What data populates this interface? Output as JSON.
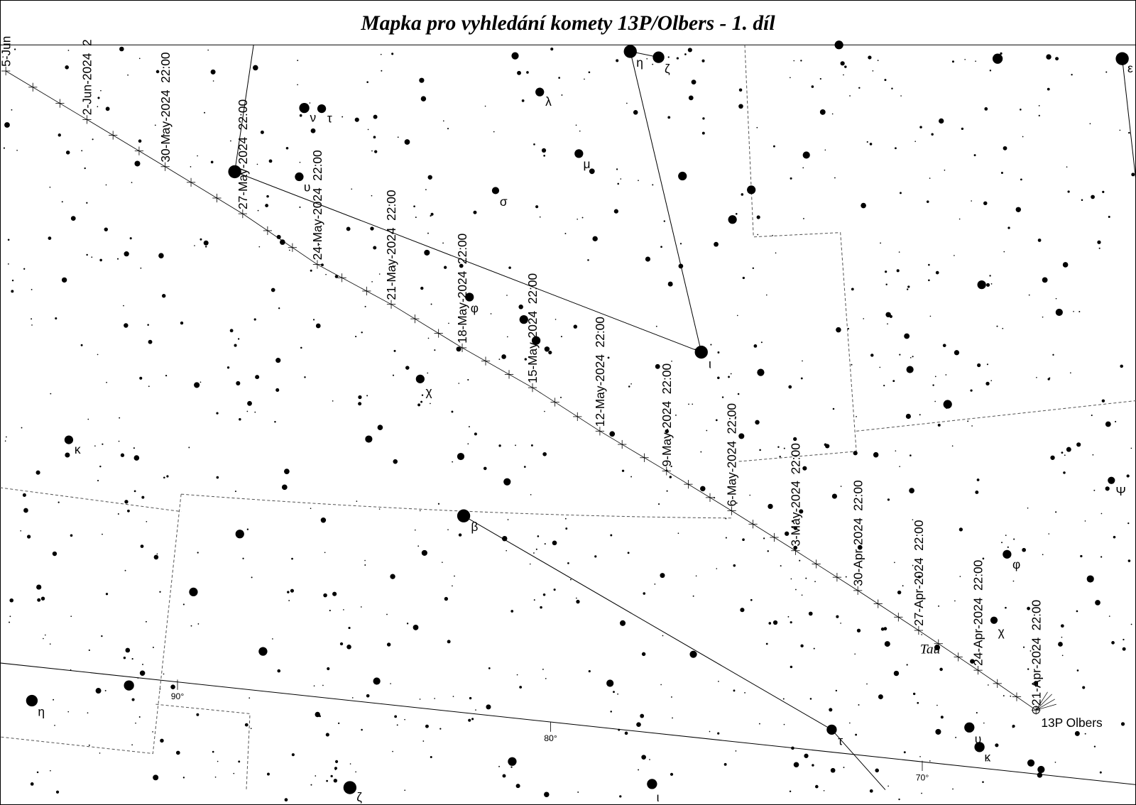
{
  "header": {
    "title": "Mapka pro vyhledání komety 13P/Olbers - 1. díl"
  },
  "comet": {
    "label": "13P Olbers",
    "dates": [
      "21-Apr-2024  22:00",
      "24-Apr-2024  22:00",
      "27-Apr-2024  22:00",
      "30-Apr-2024  22:00",
      "3-May-2024  22:00",
      "6-May-2024  22:00",
      "9-May-2024  22:00",
      "12-May-2024  22:00",
      "15-May-2024  22:00",
      "18-May-2024  22:00",
      "21-May-2024  22:00",
      "24-May-2024  22:00",
      "27-May-2024  22:00",
      "30-May-2024  22:00",
      "2-Jun-2024  2",
      "5-Jun"
    ]
  },
  "stars": [
    {
      "label": "η"
    },
    {
      "label": "ζ"
    },
    {
      "label": "ε"
    },
    {
      "label": "λ"
    },
    {
      "label": "ν"
    },
    {
      "label": "τ"
    },
    {
      "label": "μ"
    },
    {
      "label": "υ"
    },
    {
      "label": "σ"
    },
    {
      "label": "φ"
    },
    {
      "label": "ι"
    },
    {
      "label": "χ"
    },
    {
      "label": "κ"
    },
    {
      "label": "Ψ"
    },
    {
      "label": "β"
    },
    {
      "label": "φ"
    },
    {
      "label": "χ"
    },
    {
      "label": "η"
    },
    {
      "label": "τ"
    },
    {
      "label": "υ"
    },
    {
      "label": "κ"
    },
    {
      "label": "ζ"
    },
    {
      "label": "ι"
    }
  ],
  "constellation": {
    "label": "Tau"
  },
  "ecliptic_ticks": [
    {
      "label": "90°"
    },
    {
      "label": "80°"
    },
    {
      "label": "70°"
    }
  ]
}
